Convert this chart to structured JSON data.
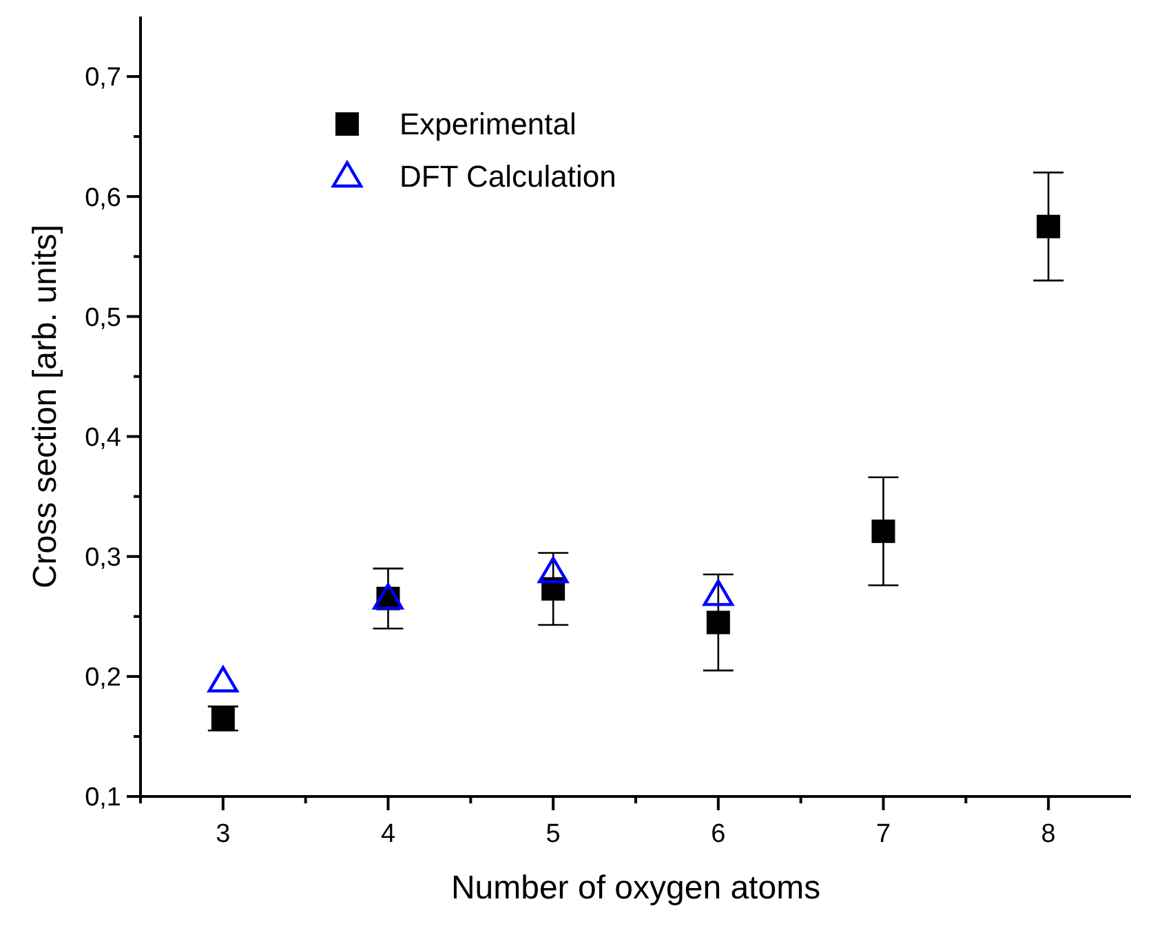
{
  "chart_data": {
    "type": "scatter",
    "xlabel": "Number of oxygen atoms",
    "ylabel": "Cross section [arb. units]",
    "x": [
      3,
      4,
      5,
      6,
      7,
      8
    ],
    "series": [
      {
        "name": "Experimental",
        "color": "#000000",
        "marker": "square",
        "values": [
          0.165,
          0.265,
          0.273,
          0.245,
          0.321,
          0.575
        ],
        "errors": [
          0.01,
          0.025,
          0.03,
          0.04,
          0.045,
          0.045
        ]
      },
      {
        "name": "DFT Calculation",
        "color": "#0000ff",
        "marker": "triangle",
        "x": [
          3,
          4,
          5,
          6
        ],
        "values": [
          0.196,
          0.265,
          0.287,
          0.268
        ]
      }
    ],
    "xlim": [
      2.5,
      8.5
    ],
    "ylim": [
      0.1,
      0.75
    ],
    "xticks": [
      {
        "value": 2.5,
        "label": null
      },
      3,
      {
        "value": 3.5,
        "label": null
      },
      4,
      {
        "value": 4.5,
        "label": null
      },
      5,
      {
        "value": 5.5,
        "label": null
      },
      6,
      {
        "value": 6.5,
        "label": null
      },
      7,
      {
        "value": 7.5,
        "label": null
      },
      8
    ],
    "yticks": [
      {
        "value": 0.1,
        "label": "0,1"
      },
      {
        "value": 0.15,
        "label": null
      },
      {
        "value": 0.2,
        "label": "0,2"
      },
      {
        "value": 0.25,
        "label": null
      },
      {
        "value": 0.3,
        "label": "0,3"
      },
      {
        "value": 0.35,
        "label": null
      },
      {
        "value": 0.4,
        "label": "0,4"
      },
      {
        "value": 0.45,
        "label": null
      },
      {
        "value": 0.5,
        "label": "0,5"
      },
      {
        "value": 0.55,
        "label": null
      },
      {
        "value": 0.6,
        "label": "0,6"
      },
      {
        "value": 0.65,
        "label": null
      },
      {
        "value": 0.7,
        "label": "0,7"
      }
    ],
    "grid": false,
    "legend": "top left"
  }
}
